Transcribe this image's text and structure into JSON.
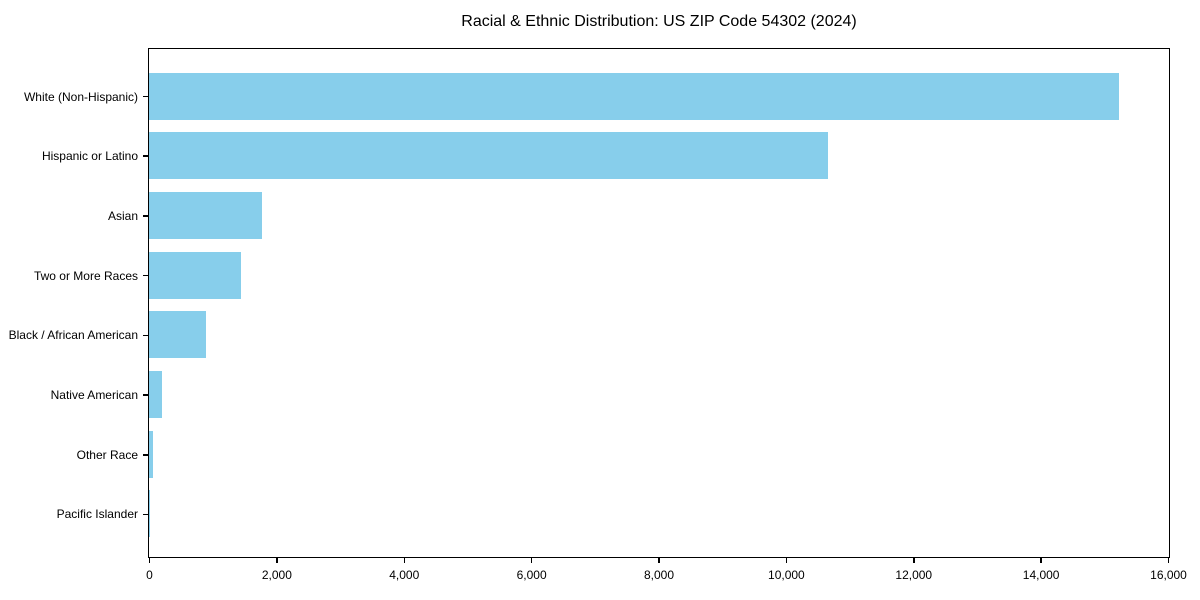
{
  "chart_data": {
    "type": "bar",
    "orientation": "horizontal",
    "title": "Racial & Ethnic Distribution: US ZIP Code 54302 (2024)",
    "categories": [
      "White (Non-Hispanic)",
      "Hispanic or Latino",
      "Asian",
      "Two or More Races",
      "Black / African American",
      "Native American",
      "Other Race",
      "Pacific Islander"
    ],
    "values": [
      15230,
      10660,
      1780,
      1440,
      900,
      210,
      60,
      10
    ],
    "xlabel": "",
    "ylabel": "",
    "xlim": [
      0,
      16000
    ],
    "x_ticks": [
      0,
      2000,
      4000,
      6000,
      8000,
      10000,
      12000,
      14000,
      16000
    ],
    "x_tick_labels": [
      "0",
      "2,000",
      "4,000",
      "6,000",
      "8,000",
      "10,000",
      "12,000",
      "14,000",
      "16,000"
    ],
    "grid": false,
    "legend_position": "none",
    "colors": {
      "bar": "#87CEEB",
      "axis": "#000000",
      "text": "#000000",
      "background": "#ffffff"
    }
  }
}
